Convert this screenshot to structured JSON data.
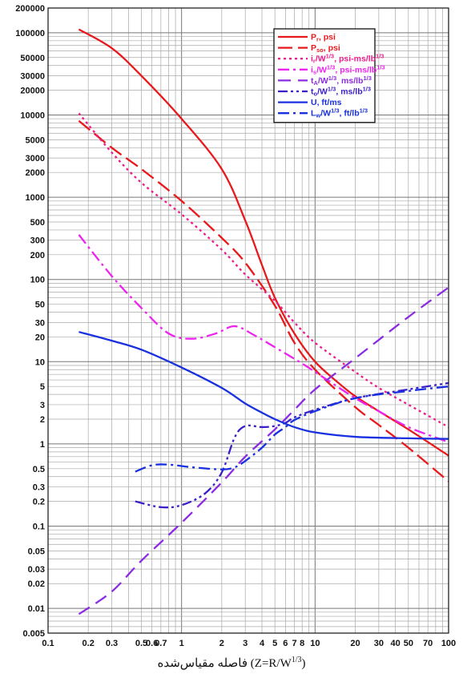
{
  "chart_data": {
    "type": "line",
    "xlabel_prefix": "فاصله مقیاس‌شده",
    "xlabel_formula": "(Z=R/W",
    "xlabel_exp": "1/3",
    "xlabel_close": ")",
    "x_scale": "log",
    "y_scale": "log",
    "xlim": [
      0.1,
      100
    ],
    "ylim": [
      0.005,
      200000
    ],
    "grid": true,
    "legend_position": "top-right",
    "x_ticks": [
      {
        "v": 0.1,
        "label": "0.1"
      },
      {
        "v": 0.2,
        "label": "0.2"
      },
      {
        "v": 0.3,
        "label": "0.3"
      },
      {
        "v": 0.5,
        "label": "0.5"
      },
      {
        "v": 0.6,
        "label": "0.6"
      },
      {
        "v": 0.7,
        "label": "0.7"
      },
      {
        "v": 1,
        "label": "1"
      },
      {
        "v": 2,
        "label": "2"
      },
      {
        "v": 3,
        "label": "3"
      },
      {
        "v": 4,
        "label": "4"
      },
      {
        "v": 5,
        "label": "5"
      },
      {
        "v": 6,
        "label": "6"
      },
      {
        "v": 7,
        "label": "7"
      },
      {
        "v": 8,
        "label": "8"
      },
      {
        "v": 10,
        "label": "10"
      },
      {
        "v": 20,
        "label": "20"
      },
      {
        "v": 30,
        "label": "30"
      },
      {
        "v": 40,
        "label": "40"
      },
      {
        "v": 50,
        "label": "50"
      },
      {
        "v": 70,
        "label": "70"
      },
      {
        "v": 100,
        "label": "100"
      }
    ],
    "y_ticks": [
      {
        "v": 200000,
        "label": "200000"
      },
      {
        "v": 100000,
        "label": "100000"
      },
      {
        "v": 50000,
        "label": "50000"
      },
      {
        "v": 30000,
        "label": "30000"
      },
      {
        "v": 20000,
        "label": "20000"
      },
      {
        "v": 10000,
        "label": "10000"
      },
      {
        "v": 5000,
        "label": "5000"
      },
      {
        "v": 3000,
        "label": "3000"
      },
      {
        "v": 2000,
        "label": "2000"
      },
      {
        "v": 1000,
        "label": "1000"
      },
      {
        "v": 500,
        "label": "500"
      },
      {
        "v": 300,
        "label": "300"
      },
      {
        "v": 200,
        "label": "200"
      },
      {
        "v": 100,
        "label": "100"
      },
      {
        "v": 50,
        "label": "50"
      },
      {
        "v": 30,
        "label": "30"
      },
      {
        "v": 20,
        "label": "20"
      },
      {
        "v": 10,
        "label": "10"
      },
      {
        "v": 5,
        "label": "5"
      },
      {
        "v": 3,
        "label": "3"
      },
      {
        "v": 2,
        "label": "2"
      },
      {
        "v": 1,
        "label": "1"
      },
      {
        "v": 0.5,
        "label": "0.5"
      },
      {
        "v": 0.3,
        "label": "0.3"
      },
      {
        "v": 0.2,
        "label": "0.2"
      },
      {
        "v": 0.1,
        "label": "0.1"
      },
      {
        "v": 0.05,
        "label": "0.05"
      },
      {
        "v": 0.03,
        "label": "0.03"
      },
      {
        "v": 0.02,
        "label": "0.02"
      },
      {
        "v": 0.01,
        "label": "0.01"
      },
      {
        "v": 0.005,
        "label": "0.005"
      }
    ],
    "series": [
      {
        "key": "pr",
        "name": "P",
        "sub": "r",
        "rest": ", psi",
        "sup": "",
        "rest2": "",
        "color": "#e8191c",
        "dash": "solid",
        "points": [
          [
            0.17,
            110000
          ],
          [
            0.3,
            65000
          ],
          [
            0.5,
            30000
          ],
          [
            1,
            9000
          ],
          [
            2,
            2200
          ],
          [
            3,
            520
          ],
          [
            4,
            150
          ],
          [
            5,
            60
          ],
          [
            7,
            22
          ],
          [
            10,
            10
          ],
          [
            15,
            5.5
          ],
          [
            20,
            3.8
          ],
          [
            30,
            2.5
          ],
          [
            50,
            1.5
          ],
          [
            100,
            0.72
          ]
        ]
      },
      {
        "key": "pso",
        "name": "P",
        "sub": "so",
        "rest": ", psi",
        "sup": "",
        "rest2": "",
        "color": "#e8191c",
        "dash": "long",
        "points": [
          [
            0.17,
            8500
          ],
          [
            0.3,
            4000
          ],
          [
            0.5,
            2200
          ],
          [
            1,
            900
          ],
          [
            2,
            320
          ],
          [
            3,
            160
          ],
          [
            5,
            48
          ],
          [
            7,
            17
          ],
          [
            10,
            8
          ],
          [
            20,
            2.8
          ],
          [
            30,
            1.7
          ],
          [
            50,
            0.9
          ],
          [
            100,
            0.35
          ]
        ]
      },
      {
        "key": "ir",
        "name": "i",
        "sub": "r",
        "rest": "/W",
        "sup": "1/3",
        "rest2": ", psi-ms/lb",
        "color": "#ee1c8c",
        "dash": "dot",
        "points": [
          [
            0.17,
            10500
          ],
          [
            0.3,
            3500
          ],
          [
            0.5,
            1500
          ],
          [
            1,
            620
          ],
          [
            2,
            230
          ],
          [
            3,
            115
          ],
          [
            5,
            55
          ],
          [
            7,
            30
          ],
          [
            10,
            17
          ],
          [
            20,
            7.5
          ],
          [
            30,
            4.8
          ],
          [
            50,
            3
          ],
          [
            100,
            1.6
          ]
        ]
      },
      {
        "key": "is",
        "name": "i",
        "sub": "s",
        "rest": "/W",
        "sup": "1/3",
        "rest2": ", psi-ms/lb",
        "color": "#ee22ee",
        "dash": "dashdot",
        "points": [
          [
            0.17,
            350
          ],
          [
            0.3,
            110
          ],
          [
            0.5,
            45
          ],
          [
            0.8,
            22
          ],
          [
            1.2,
            19
          ],
          [
            1.8,
            22
          ],
          [
            2.5,
            27
          ],
          [
            3.5,
            21
          ],
          [
            5,
            15
          ],
          [
            8,
            9.5
          ],
          [
            10,
            7.5
          ],
          [
            20,
            3.6
          ],
          [
            30,
            2.5
          ],
          [
            50,
            1.6
          ],
          [
            100,
            1.05
          ]
        ]
      },
      {
        "key": "ta",
        "name": "t",
        "sub": "A",
        "rest": "/W",
        "sup": "1/3",
        "rest2": ", ms/lb",
        "color": "#8b2be2",
        "dash": "longdash",
        "points": [
          [
            0.17,
            0.0085
          ],
          [
            0.3,
            0.016
          ],
          [
            0.5,
            0.038
          ],
          [
            1,
            0.11
          ],
          [
            2,
            0.34
          ],
          [
            3,
            0.7
          ],
          [
            5,
            1.5
          ],
          [
            7,
            2.6
          ],
          [
            10,
            4.6
          ],
          [
            20,
            11
          ],
          [
            50,
            35
          ],
          [
            100,
            80
          ]
        ]
      },
      {
        "key": "to",
        "name": "t",
        "sub": "o",
        "rest": "/W",
        "sup": "1/3",
        "rest2": ", ms/lb",
        "color": "#3a1fc9",
        "dash": "dashdotdot",
        "points": [
          [
            0.45,
            0.2
          ],
          [
            0.7,
            0.17
          ],
          [
            1,
            0.18
          ],
          [
            1.5,
            0.25
          ],
          [
            2,
            0.45
          ],
          [
            2.5,
            1.2
          ],
          [
            3,
            1.65
          ],
          [
            4,
            1.6
          ],
          [
            5,
            1.65
          ],
          [
            6,
            1.8
          ],
          [
            7,
            2.1
          ],
          [
            10,
            2.6
          ],
          [
            20,
            3.6
          ],
          [
            50,
            4.6
          ],
          [
            100,
            5.5
          ]
        ]
      },
      {
        "key": "u",
        "name": "U, ft/ms",
        "sub": "",
        "rest": "",
        "sup": "",
        "rest2": "",
        "color": "#1830e0",
        "dash": "solid",
        "points": [
          [
            0.17,
            23
          ],
          [
            0.3,
            18
          ],
          [
            0.5,
            14
          ],
          [
            1,
            8.5
          ],
          [
            2,
            4.8
          ],
          [
            3,
            3.1
          ],
          [
            4,
            2.4
          ],
          [
            5,
            2
          ],
          [
            7,
            1.6
          ],
          [
            10,
            1.38
          ],
          [
            20,
            1.22
          ],
          [
            50,
            1.17
          ],
          [
            100,
            1.15
          ]
        ]
      },
      {
        "key": "lw",
        "name": "L",
        "sub": "w",
        "rest": "/W",
        "sup": "1/3",
        "rest2": ", ft/lb",
        "color": "#1830e0",
        "dash": "dashdot",
        "points": [
          [
            0.45,
            0.46
          ],
          [
            0.6,
            0.55
          ],
          [
            0.8,
            0.56
          ],
          [
            1.2,
            0.52
          ],
          [
            2,
            0.49
          ],
          [
            2.5,
            0.52
          ],
          [
            3,
            0.62
          ],
          [
            4,
            0.9
          ],
          [
            5,
            1.3
          ],
          [
            6,
            1.6
          ],
          [
            7,
            1.95
          ],
          [
            10,
            2.5
          ],
          [
            20,
            3.6
          ],
          [
            50,
            4.4
          ],
          [
            100,
            5
          ]
        ]
      }
    ]
  }
}
